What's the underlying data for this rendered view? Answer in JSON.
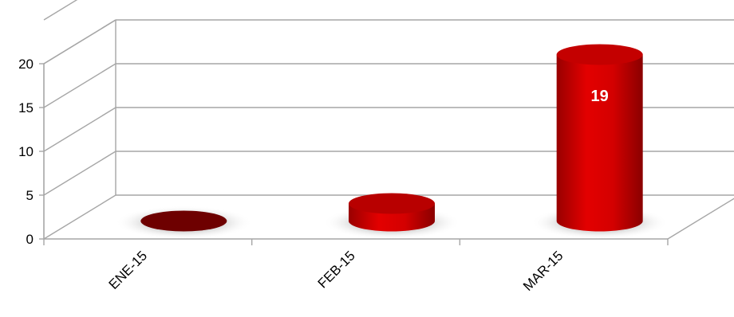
{
  "chart_data": {
    "type": "bar",
    "style": "3d-cylinder",
    "categories": [
      "ENE-15",
      "FEB-15",
      "MAR-15"
    ],
    "values": [
      0,
      2,
      19
    ],
    "data_labels": [
      "",
      "",
      "19"
    ],
    "ylim": [
      0,
      20
    ],
    "yticks": [
      "0",
      "5",
      "10",
      "15",
      "20"
    ],
    "grid": true,
    "legend": "none",
    "colors": {
      "bar_light": "#e00000",
      "bar_dark": "#8a0000",
      "bar_top": "#c80000",
      "grid": "#a6a6a6"
    }
  }
}
